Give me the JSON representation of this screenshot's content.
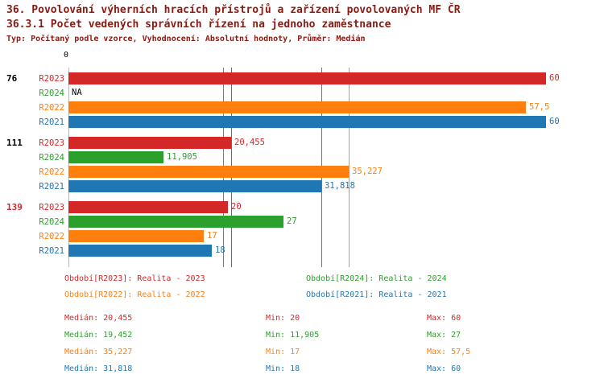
{
  "colors": {
    "title": "#8b1a10",
    "text": "#000000",
    "axis_line": "#b8b8b8"
  },
  "header": {
    "title1": "36. Povolování výherních hracích přístrojů a zařízení povolovaných MF ČR",
    "title2": "36.3.1 Počet vedených správních řízení na jednoho zaměstnance",
    "subtitle": "Typ: Počítaný podle vzorce, Vyhodnocení: Absolutní hodnoty, Průměr: Medián"
  },
  "chart_data": {
    "type": "bar",
    "orientation": "horizontal",
    "xlim": [
      0,
      60.7
    ],
    "x_zero_label": "0",
    "grid": false,
    "na_label_color": "#000000",
    "series_colors": {
      "R2023": "#d62728",
      "R2024": "#2ca02c",
      "R2022": "#ff7f0e",
      "R2021": "#1f77b4"
    },
    "groups": [
      {
        "label": "76",
        "label_color": "#000000",
        "bars": [
          {
            "series": "R2023",
            "value": 60,
            "value_label": "60"
          },
          {
            "series": "R2024",
            "value": null,
            "value_label": "NA"
          },
          {
            "series": "R2022",
            "value": 57.5,
            "value_label": "57,5"
          },
          {
            "series": "R2021",
            "value": 60,
            "value_label": "60"
          }
        ]
      },
      {
        "label": "111",
        "label_color": "#000000",
        "bars": [
          {
            "series": "R2023",
            "value": 20.455,
            "value_label": "20,455"
          },
          {
            "series": "R2024",
            "value": 11.905,
            "value_label": "11,905"
          },
          {
            "series": "R2022",
            "value": 35.227,
            "value_label": "35,227"
          },
          {
            "series": "R2021",
            "value": 31.818,
            "value_label": "31,818"
          }
        ]
      },
      {
        "label": "139",
        "label_color": "#d62728",
        "bars": [
          {
            "series": "R2023",
            "value": 20,
            "value_label": "20"
          },
          {
            "series": "R2024",
            "value": 27,
            "value_label": "27"
          },
          {
            "series": "R2022",
            "value": 17,
            "value_label": "17"
          },
          {
            "series": "R2021",
            "value": 18,
            "value_label": "18"
          }
        ]
      }
    ],
    "median_lines": [
      {
        "series": "R2024",
        "value": 19.452
      },
      {
        "series": "R2023",
        "value": 20.455
      },
      {
        "series": "R2021",
        "value": 31.818
      },
      {
        "series": "R2022",
        "value": 35.227
      }
    ],
    "legend": [
      {
        "series": "R2023",
        "text": "Období[R2023]: Realita - 2023"
      },
      {
        "series": "R2024",
        "text": "Období[R2024]: Realita - 2024"
      },
      {
        "series": "R2022",
        "text": "Období[R2022]: Realita - 2022"
      },
      {
        "series": "R2021",
        "text": "Období[R2021]: Realita - 2021"
      }
    ],
    "stats": [
      {
        "series": "R2023",
        "median": "Medián: 20,455",
        "min": "Min: 20",
        "max": "Max: 60"
      },
      {
        "series": "R2024",
        "median": "Medián: 19,452",
        "min": "Min: 11,905",
        "max": "Max: 27"
      },
      {
        "series": "R2022",
        "median": "Medián: 35,227",
        "min": "Min: 17",
        "max": "Max: 57,5"
      },
      {
        "series": "R2021",
        "median": "Medián: 31,818",
        "min": "Min: 18",
        "max": "Max: 60"
      }
    ]
  }
}
